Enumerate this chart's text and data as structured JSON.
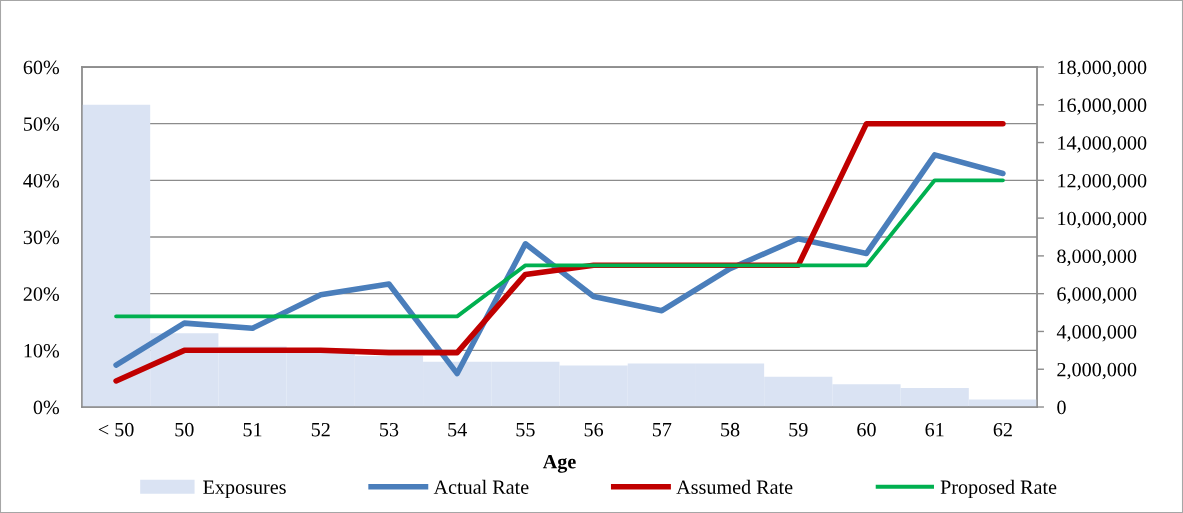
{
  "chart_data": {
    "type": "line",
    "xlabel": "Age",
    "categories": [
      "< 50",
      "50",
      "51",
      "52",
      "53",
      "54",
      "55",
      "56",
      "57",
      "58",
      "59",
      "60",
      "61",
      "62"
    ],
    "series": [
      {
        "name": "Exposures",
        "type": "bar",
        "axis": "y2",
        "color": "#dae3f3",
        "values": [
          16000000,
          3900000,
          3200000,
          3100000,
          2700000,
          2400000,
          2400000,
          2200000,
          2300000,
          2300000,
          1600000,
          1200000,
          1000000,
          400000
        ]
      },
      {
        "name": "Actual Rate",
        "color": "#4a7ebb",
        "values": [
          7.4,
          14.8,
          13.9,
          19.8,
          21.7,
          5.9,
          28.8,
          19.5,
          17.0,
          24.4,
          29.7,
          27.1,
          44.5,
          41.2
        ]
      },
      {
        "name": "Assumed Rate",
        "color": "#c00000",
        "values": [
          4.6,
          10,
          10,
          10,
          9.6,
          9.6,
          23.4,
          25,
          25,
          25,
          25,
          50,
          50,
          50
        ]
      },
      {
        "name": "Proposed Rate",
        "color": "#00b050",
        "values": [
          16,
          16,
          16,
          16,
          16,
          16,
          25,
          25,
          25,
          25,
          25,
          25,
          40,
          40
        ]
      }
    ],
    "ylim": [
      0,
      60
    ],
    "yticks": [
      {
        "value": 0,
        "label": "0%"
      },
      {
        "value": 10,
        "label": "10%"
      },
      {
        "value": 20,
        "label": "20%"
      },
      {
        "value": 30,
        "label": "30%"
      },
      {
        "value": 40,
        "label": "40%"
      },
      {
        "value": 50,
        "label": "50%"
      },
      {
        "value": 60,
        "label": "60%"
      }
    ],
    "y2lim": [
      0,
      18000000
    ],
    "y2ticks": [
      0,
      {
        "value": 2000000,
        "label": "2,000,000"
      },
      {
        "value": 4000000,
        "label": "4,000,000"
      },
      {
        "value": 6000000,
        "label": "6,000,000"
      },
      {
        "value": 8000000,
        "label": "8,000,000"
      },
      {
        "value": 10000000,
        "label": "10,000,000"
      },
      {
        "value": 12000000,
        "label": "12,000,000"
      },
      {
        "value": 14000000,
        "label": "14,000,000"
      },
      {
        "value": 16000000,
        "label": "16,000,000"
      },
      {
        "value": 18000000,
        "label": "18,000,000"
      }
    ],
    "grid": "y",
    "legend": "bottom"
  }
}
